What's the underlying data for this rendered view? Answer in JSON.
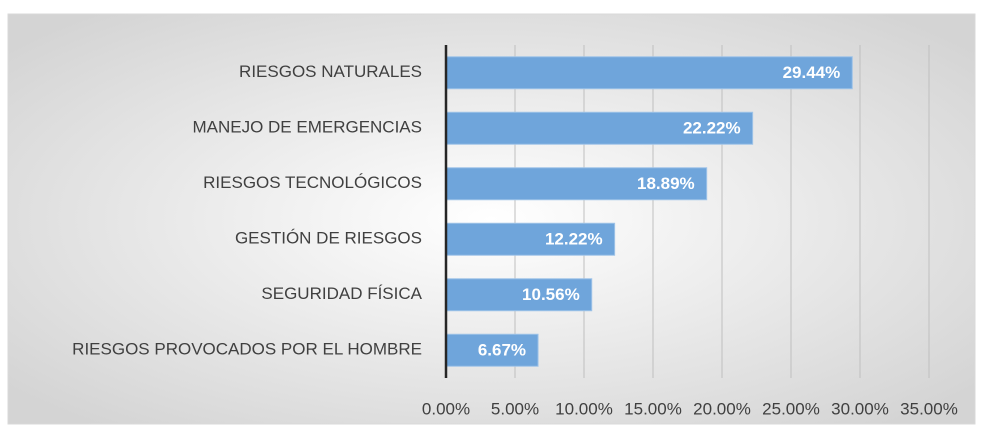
{
  "chart_data": {
    "type": "barh",
    "categories": [
      "RIESGOS NATURALES",
      "MANEJO DE EMERGENCIAS",
      "RIESGOS TECNOLÓGICOS",
      "GESTIÓN DE RIESGOS",
      "SEGURIDAD FÍSICA",
      "RIESGOS PROVOCADOS POR EL HOMBRE"
    ],
    "values": [
      29.44,
      22.22,
      18.89,
      12.22,
      10.56,
      6.67
    ],
    "value_labels": [
      "29.44%",
      "22.22%",
      "18.89%",
      "12.22%",
      "10.56%",
      "6.67%"
    ],
    "color": "#6fa5db",
    "xlim": [
      0,
      35
    ],
    "xticks": [
      {
        "value": 0,
        "label": "0.00%"
      },
      {
        "value": 5,
        "label": "5.00%"
      },
      {
        "value": 10,
        "label": "10.00%"
      },
      {
        "value": 15,
        "label": "15.00%"
      },
      {
        "value": 20,
        "label": "20.00%"
      },
      {
        "value": 25,
        "label": "25.00%"
      },
      {
        "value": 30,
        "label": "30.00%"
      },
      {
        "value": 35,
        "label": "35.00%"
      }
    ],
    "grid": true
  }
}
